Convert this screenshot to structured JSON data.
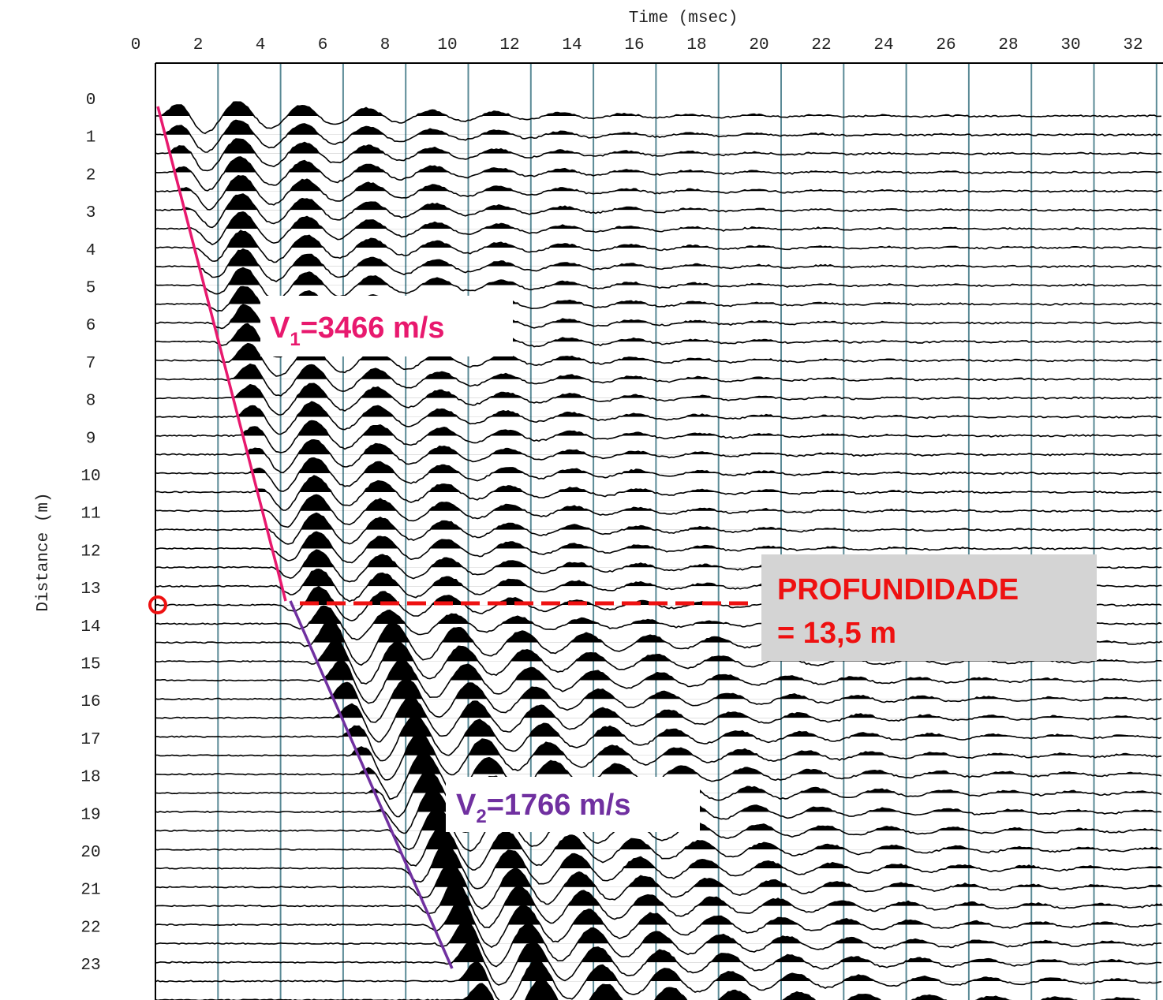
{
  "x_axis": {
    "label": "Time (msec)",
    "ticks": [
      "0",
      "2",
      "4",
      "6",
      "8",
      "10",
      "12",
      "14",
      "16",
      "18",
      "20",
      "22",
      "24",
      "26",
      "28",
      "30",
      "32"
    ]
  },
  "y_axis": {
    "label": "Distance (m)",
    "ticks": [
      "0",
      "1",
      "2",
      "3",
      "4",
      "5",
      "6",
      "7",
      "8",
      "9",
      "10",
      "11",
      "12",
      "13",
      "14",
      "15",
      "16",
      "17",
      "18",
      "19",
      "20",
      "21",
      "22",
      "23"
    ]
  },
  "annotations": {
    "v1": {
      "symbol": "V",
      "subscript": "1",
      "text": "=3466 m/s"
    },
    "v2": {
      "symbol": "V",
      "subscript": "2",
      "text": "=1766 m/s"
    },
    "depth": {
      "line1": "PROFUNDIDADE",
      "line2": "= 13,5 m"
    }
  }
}
